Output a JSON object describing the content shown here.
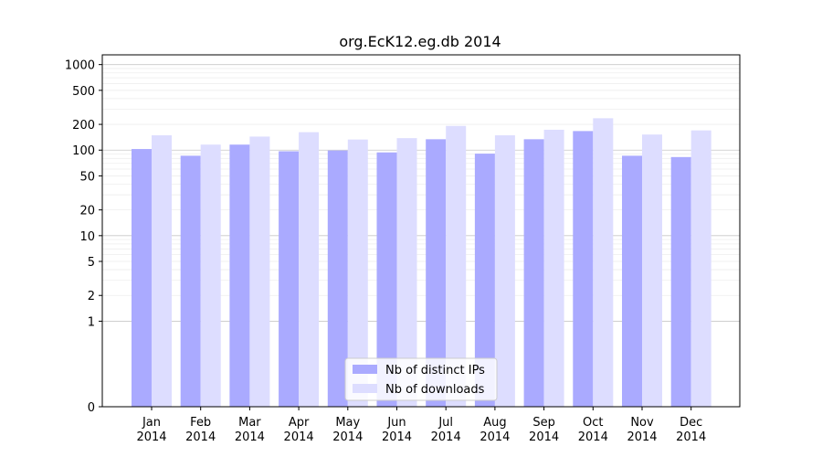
{
  "chart_data": {
    "type": "bar",
    "title": "org.EcK12.eg.db 2014",
    "xlabel": "",
    "ylabel": "",
    "yscale": "symlog",
    "ylim": [
      0,
      1300
    ],
    "yticks": [
      0,
      1,
      2,
      5,
      10,
      20,
      50,
      100,
      200,
      500,
      1000
    ],
    "ytick_labels": [
      "0",
      "1",
      "2",
      "5",
      "10",
      "20",
      "50",
      "100",
      "200",
      "500",
      "1000"
    ],
    "grid": true,
    "legend_position": "bottom-center",
    "categories": [
      "Jan\n2014",
      "Feb\n2014",
      "Mar\n2014",
      "Apr\n2014",
      "May\n2014",
      "Jun\n2014",
      "Jul\n2014",
      "Aug\n2014",
      "Sep\n2014",
      "Oct\n2014",
      "Nov\n2014",
      "Dec\n2014"
    ],
    "category_lines": [
      [
        "Jan",
        "2014"
      ],
      [
        "Feb",
        "2014"
      ],
      [
        "Mar",
        "2014"
      ],
      [
        "Apr",
        "2014"
      ],
      [
        "May",
        "2014"
      ],
      [
        "Jun",
        "2014"
      ],
      [
        "Jul",
        "2014"
      ],
      [
        "Aug",
        "2014"
      ],
      [
        "Sep",
        "2014"
      ],
      [
        "Oct",
        "2014"
      ],
      [
        "Nov",
        "2014"
      ],
      [
        "Dec",
        "2014"
      ]
    ],
    "series": [
      {
        "name": "Nb of distinct IPs",
        "color": "#aaaaff",
        "values": [
          103,
          86,
          116,
          97,
          99,
          94,
          134,
          91,
          134,
          167,
          86,
          83
        ]
      },
      {
        "name": "Nb of downloads",
        "color": "#ddddff",
        "values": [
          149,
          116,
          144,
          162,
          133,
          138,
          192,
          149,
          173,
          236,
          152,
          170
        ]
      }
    ]
  }
}
